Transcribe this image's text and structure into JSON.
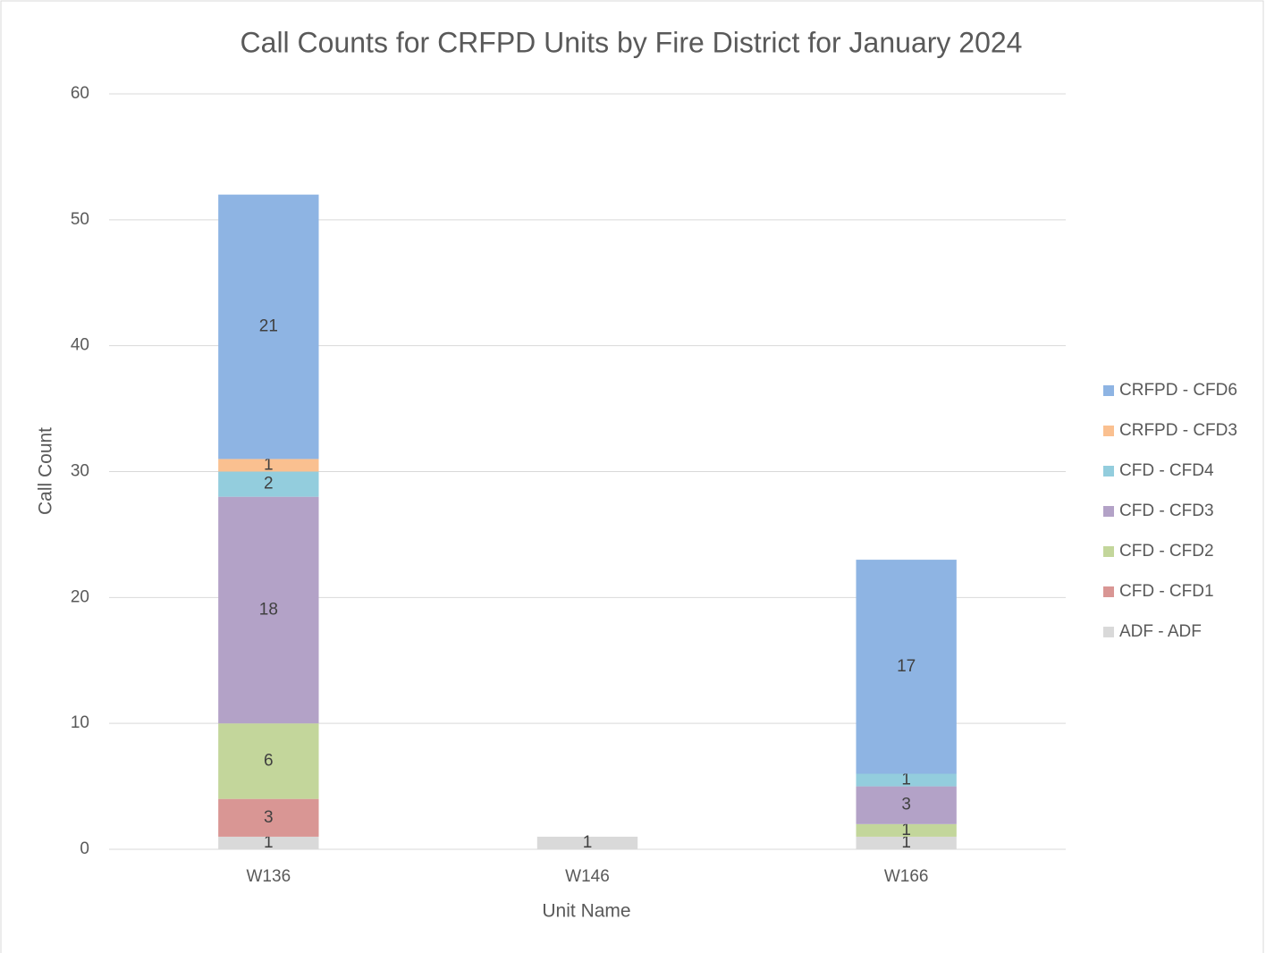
{
  "chart_data": {
    "type": "stacked_bar",
    "title": "Call Counts for CRFPD Units by Fire District for January 2024",
    "x_label": "Unit Name",
    "y_label": "Call Count",
    "categories": [
      "W136",
      "W146",
      "W166"
    ],
    "series": [
      {
        "name": "ADF - ADF",
        "color": "#d9d9d9",
        "values": [
          1,
          1,
          1
        ]
      },
      {
        "name": "CFD - CFD1",
        "color": "#d99694",
        "values": [
          3,
          null,
          null
        ]
      },
      {
        "name": "CFD - CFD2",
        "color": "#c3d69b",
        "values": [
          6,
          null,
          1
        ]
      },
      {
        "name": "CFD - CFD3",
        "color": "#b3a2c7",
        "values": [
          18,
          null,
          3
        ]
      },
      {
        "name": "CFD - CFD4",
        "color": "#93cddd",
        "values": [
          2,
          null,
          1
        ]
      },
      {
        "name": "CRFPD - CFD3",
        "color": "#fac090",
        "values": [
          1,
          null,
          null
        ]
      },
      {
        "name": "CRFPD - CFD6",
        "color": "#8eb4e3",
        "values": [
          21,
          null,
          17
        ]
      }
    ],
    "ylim": [
      0,
      60
    ],
    "yticks": [
      0,
      10,
      20,
      30,
      40,
      50,
      60
    ],
    "grid": true,
    "legend": "right"
  }
}
